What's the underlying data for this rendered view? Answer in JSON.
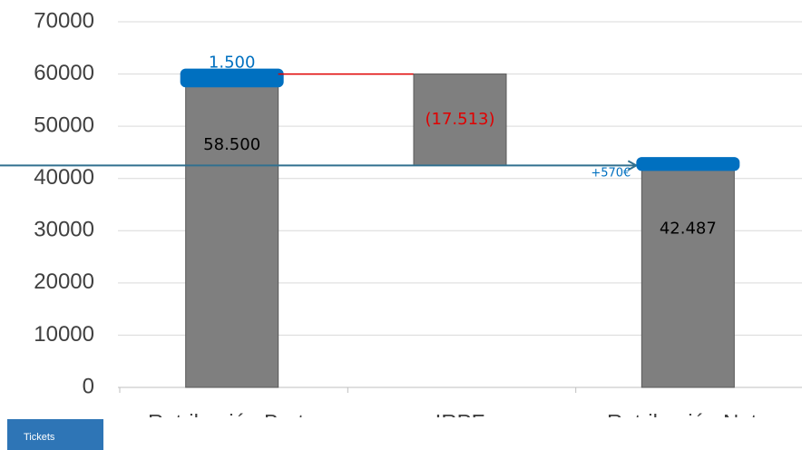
{
  "chart_data": {
    "type": "waterfall",
    "categories": [
      "Retribución Bruta",
      "IRPF",
      "Retribución Neta"
    ],
    "values": [
      58500,
      -17513,
      42487
    ],
    "value_labels": [
      "58.500",
      "(17.513)",
      "42.487"
    ],
    "caps": [
      1500,
      null,
      570
    ],
    "cap_labels": [
      "1.500",
      null,
      "+570€"
    ],
    "color": "#7f7f7f",
    "cap_color": "#0070c0",
    "negative_label_color": "#e00000",
    "ylim": [
      0,
      70000
    ],
    "yticks": [
      0,
      10000,
      20000,
      30000,
      40000,
      50000,
      60000,
      70000
    ],
    "grid": true
  },
  "button_label": "Tickets"
}
